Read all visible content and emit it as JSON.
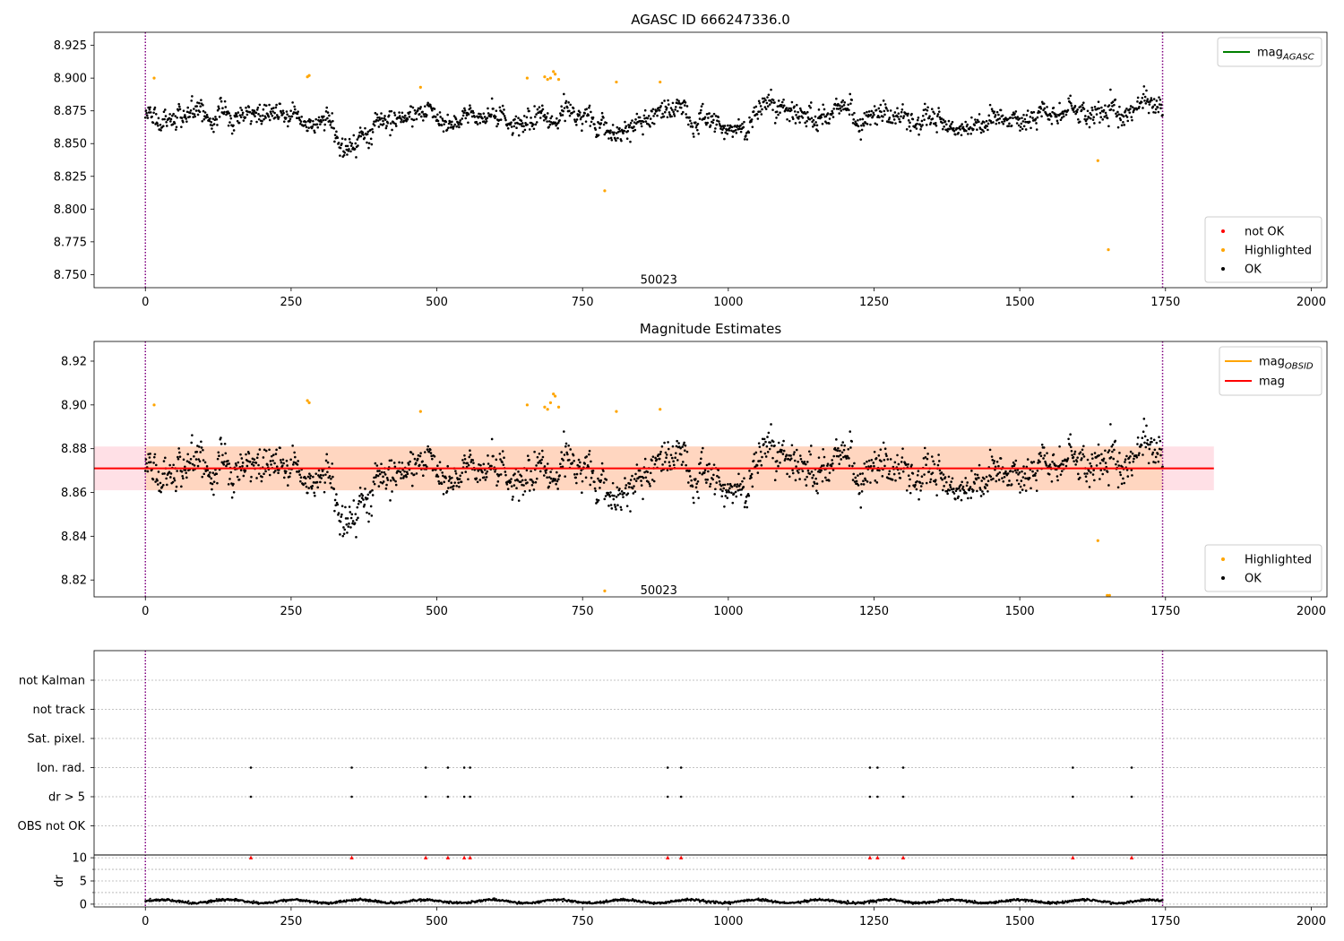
{
  "chart_data": [
    {
      "type": "scatter",
      "title": "AGASC ID 666247336.0",
      "xlim": [
        -88,
        2027
      ],
      "ylim": [
        8.74,
        8.935
      ],
      "x_ticks": [
        0,
        250,
        500,
        750,
        1000,
        1250,
        1500,
        1750,
        2000
      ],
      "y_ticks": [
        8.75,
        8.775,
        8.8,
        8.825,
        8.85,
        8.875,
        8.9,
        8.925
      ],
      "y_tick_labels": [
        "8.750",
        "8.775",
        "8.800",
        "8.825",
        "8.850",
        "8.875",
        "8.900",
        "8.925"
      ],
      "vlines": [
        0,
        1745
      ],
      "annotation": {
        "text": "50023",
        "x": 872,
        "y": 8.7465
      },
      "legend_upper": [
        {
          "name": "mag",
          "sub": "AGASC",
          "color": "#008000",
          "kind": "line"
        }
      ],
      "legend_lower": [
        {
          "name": "not OK",
          "color": "#ff0000",
          "kind": "dot"
        },
        {
          "name": "Highlighted",
          "color": "#ffa500",
          "kind": "dot"
        },
        {
          "name": "OK",
          "color": "#000000",
          "kind": "dot"
        }
      ],
      "series": [
        {
          "label": "OK",
          "color": "#000000",
          "x_range": [
            0,
            1745
          ],
          "n": 1700,
          "center": 8.868,
          "spread": 0.008
        },
        {
          "label": "Highlighted",
          "color": "#ffa500",
          "points": [
            [
              15,
              8.9
            ],
            [
              278,
              8.901
            ],
            [
              281,
              8.902
            ],
            [
              472,
              8.893
            ],
            [
              655,
              8.9
            ],
            [
              685,
              8.901
            ],
            [
              690,
              8.899
            ],
            [
              695,
              8.9
            ],
            [
              700,
              8.905
            ],
            [
              703,
              8.903
            ],
            [
              709,
              8.899
            ],
            [
              808,
              8.897
            ],
            [
              883,
              8.897
            ],
            [
              788,
              8.814
            ],
            [
              1634,
              8.837
            ],
            [
              1652,
              8.769
            ]
          ]
        }
      ]
    },
    {
      "type": "scatter",
      "title": "Magnitude Estimates",
      "xlim": [
        -88,
        2027
      ],
      "ylim": [
        8.8123,
        8.929
      ],
      "x_ticks": [
        0,
        250,
        500,
        750,
        1000,
        1250,
        1500,
        1750,
        2000
      ],
      "y_ticks": [
        8.82,
        8.84,
        8.86,
        8.88,
        8.9,
        8.92
      ],
      "y_tick_labels": [
        "8.82",
        "8.84",
        "8.86",
        "8.88",
        "8.90",
        "8.92"
      ],
      "vlines": [
        0,
        1745
      ],
      "annotation": {
        "text": "50023",
        "x": 872,
        "y": 8.8155
      },
      "band_outer": {
        "x": [
          -88,
          1833
        ],
        "y": [
          8.861,
          8.881
        ],
        "color": "#ffe0e6"
      },
      "band_inner": {
        "x": [
          0,
          1745
        ],
        "y": [
          8.861,
          8.881
        ],
        "color": "#ffd6c0"
      },
      "mean_line": {
        "y": 8.871,
        "x": [
          -88,
          1833
        ],
        "color": "#ff0000"
      },
      "legend_upper": [
        {
          "name": "mag",
          "sub": "OBSID",
          "color": "#ffa500",
          "kind": "line"
        },
        {
          "name": "mag",
          "sub": "",
          "color": "#ff0000",
          "kind": "line"
        }
      ],
      "legend_lower": [
        {
          "name": "Highlighted",
          "color": "#ffa500",
          "kind": "dot"
        },
        {
          "name": "OK",
          "color": "#000000",
          "kind": "dot"
        }
      ],
      "series": [
        {
          "label": "OK",
          "color": "#000000",
          "x_range": [
            0,
            1745
          ],
          "n": 1700,
          "center": 8.868,
          "spread": 0.008
        },
        {
          "label": "Highlighted",
          "color": "#ffa500",
          "points": [
            [
              15,
              8.9
            ],
            [
              278,
              8.902
            ],
            [
              281,
              8.901
            ],
            [
              472,
              8.897
            ],
            [
              655,
              8.9
            ],
            [
              685,
              8.899
            ],
            [
              690,
              8.898
            ],
            [
              695,
              8.901
            ],
            [
              700,
              8.905
            ],
            [
              703,
              8.904
            ],
            [
              709,
              8.899
            ],
            [
              808,
              8.897
            ],
            [
              883,
              8.898
            ],
            [
              788,
              8.815
            ],
            [
              1634,
              8.838
            ],
            [
              1650,
              8.813
            ],
            [
              1654,
              8.813
            ]
          ]
        }
      ]
    },
    {
      "type": "scatter",
      "title": "",
      "xlim": [
        -88,
        2027
      ],
      "x_ticks": [
        0,
        250,
        500,
        750,
        1000,
        1250,
        1500,
        1750,
        2000
      ],
      "vlines": [
        0,
        1745
      ],
      "flag_rows": [
        "not Kalman",
        "not track",
        "Sat. pixel.",
        "Ion. rad.",
        "dr > 5",
        "OBS not OK"
      ],
      "flag_points": {
        "Ion. rad.": [
          181,
          354,
          481,
          519,
          547,
          557,
          896,
          919,
          1243,
          1256,
          1300,
          1591,
          1692
        ],
        "dr > 5": [
          181,
          354,
          481,
          519,
          547,
          557,
          896,
          919,
          1243,
          1256,
          1300,
          1591,
          1692
        ]
      },
      "dr_panel": {
        "ylabel": "dr",
        "ylim": [
          -0.6,
          10.6
        ],
        "y_ticks": [
          0,
          5,
          10
        ],
        "y_tick_labels": [
          "0",
          "5",
          "10"
        ],
        "clipped_value": 10,
        "clipped_x": [
          181,
          354,
          481,
          519,
          547,
          557,
          896,
          919,
          1243,
          1256,
          1300,
          1591,
          1692
        ],
        "clipped_color": "#ff0000",
        "baseline": {
          "x_range": [
            0,
            1745
          ],
          "n": 1700,
          "center": 0.6,
          "spread": 0.4
        }
      }
    }
  ]
}
